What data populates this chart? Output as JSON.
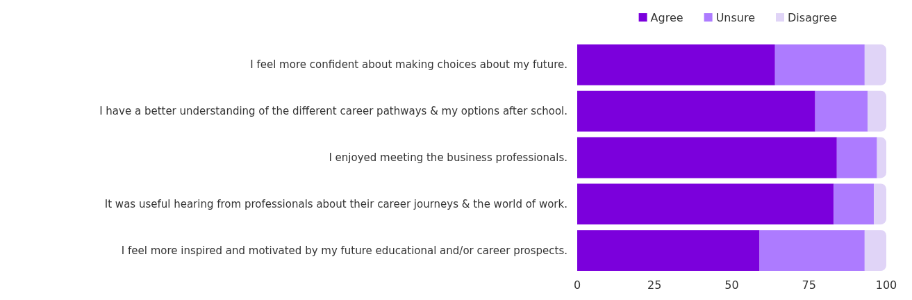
{
  "chart_data": {
    "type": "bar",
    "orientation": "horizontal",
    "stacked": true,
    "categories": [
      "I feel more confident about making choices about my future.",
      "I have a better understanding of the different career pathways & my options after school.",
      "I enjoyed meeting the business professionals.",
      "It was useful hearing from professionals about their career journeys & the world of work.",
      "I feel more inspired and motivated by my future educational and/or career prospects."
    ],
    "series": [
      {
        "name": "Agree",
        "color": "#7b00dc",
        "values": [
          64,
          77,
          84,
          83,
          59
        ]
      },
      {
        "name": "Unsure",
        "color": "#ad7bff",
        "values": [
          29,
          17,
          13,
          13,
          34
        ]
      },
      {
        "name": "Disagree",
        "color": "#e0d4f7",
        "values": [
          7,
          6,
          3,
          4,
          7
        ]
      }
    ],
    "xlim": [
      0,
      100
    ],
    "xticks": [
      0,
      25,
      50,
      75,
      100
    ],
    "grid": false,
    "legend": "top right"
  }
}
